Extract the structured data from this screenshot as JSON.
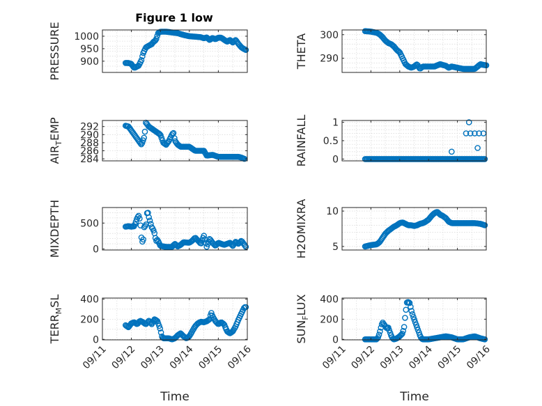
{
  "figure": {
    "title": "Figure 1 low",
    "marker_color": "#0072BD",
    "xlabel": "Time",
    "xtick_labels": [
      "09/11",
      "09/12",
      "09/13",
      "09/14",
      "09/15",
      "09/16"
    ]
  },
  "chart_data": [
    {
      "type": "scatter",
      "ylabel": "PRESSURE",
      "ylabel_sub": "",
      "ylabel_tail": "",
      "xlim": [
        0,
        5
      ],
      "ylim": [
        855,
        1025
      ],
      "yticks": [
        900,
        950,
        1000
      ],
      "ytick_labels": [
        "900",
        "950",
        "1000"
      ],
      "minor_yticks": [
        880,
        920,
        940,
        960,
        980,
        1020
      ],
      "grid": true,
      "show_xticklabels": false,
      "keypoints": [
        [
          0.8,
          893
        ],
        [
          0.9,
          893
        ],
        [
          1.0,
          889
        ],
        [
          1.05,
          880
        ],
        [
          1.1,
          873
        ],
        [
          1.15,
          876
        ],
        [
          1.25,
          882
        ],
        [
          1.3,
          893
        ],
        [
          1.35,
          905
        ],
        [
          1.4,
          930
        ],
        [
          1.5,
          955
        ],
        [
          1.6,
          962
        ],
        [
          1.7,
          968
        ],
        [
          1.75,
          976
        ],
        [
          1.85,
          985
        ],
        [
          1.92,
          1012
        ],
        [
          2.0,
          1018
        ],
        [
          2.2,
          1018
        ],
        [
          2.4,
          1015
        ],
        [
          2.6,
          1012
        ],
        [
          2.8,
          1005
        ],
        [
          3.0,
          1000
        ],
        [
          3.2,
          998
        ],
        [
          3.4,
          996
        ],
        [
          3.5,
          992
        ],
        [
          3.6,
          995
        ],
        [
          3.7,
          985
        ],
        [
          3.8,
          993
        ],
        [
          3.9,
          988
        ],
        [
          4.0,
          994
        ],
        [
          4.1,
          994
        ],
        [
          4.2,
          986
        ],
        [
          4.3,
          978
        ],
        [
          4.4,
          985
        ],
        [
          4.5,
          975
        ],
        [
          4.6,
          985
        ],
        [
          4.7,
          968
        ],
        [
          4.8,
          955
        ],
        [
          4.9,
          948
        ],
        [
          4.95,
          945
        ]
      ],
      "count": 130
    },
    {
      "type": "scatter",
      "ylabel": "THETA",
      "ylabel_sub": "",
      "ylabel_tail": "",
      "xlim": [
        0,
        5
      ],
      "ylim": [
        284,
        302
      ],
      "yticks": [
        290,
        300
      ],
      "ytick_labels": [
        "290",
        "300"
      ],
      "minor_yticks": [
        286,
        288,
        292,
        294,
        296,
        298
      ],
      "grid": true,
      "show_xticklabels": false,
      "keypoints": [
        [
          0.8,
          301.5
        ],
        [
          1.0,
          301.3
        ],
        [
          1.2,
          300.8
        ],
        [
          1.3,
          300.2
        ],
        [
          1.4,
          299.0
        ],
        [
          1.5,
          297.5
        ],
        [
          1.6,
          296.5
        ],
        [
          1.7,
          296.0
        ],
        [
          1.8,
          295.0
        ],
        [
          1.9,
          293.5
        ],
        [
          2.0,
          292.5
        ],
        [
          2.1,
          290.0
        ],
        [
          2.2,
          287.5
        ],
        [
          2.3,
          286.5
        ],
        [
          2.4,
          286.0
        ],
        [
          2.5,
          286.5
        ],
        [
          2.6,
          287.5
        ],
        [
          2.7,
          285.5
        ],
        [
          2.8,
          286.5
        ],
        [
          3.0,
          286.5
        ],
        [
          3.2,
          286.5
        ],
        [
          3.4,
          287.5
        ],
        [
          3.6,
          286.8
        ],
        [
          3.7,
          286.0
        ],
        [
          3.8,
          286.5
        ],
        [
          4.0,
          286.0
        ],
        [
          4.2,
          285.5
        ],
        [
          4.4,
          285.5
        ],
        [
          4.6,
          285.5
        ],
        [
          4.7,
          286.5
        ],
        [
          4.8,
          287.5
        ],
        [
          4.9,
          287.2
        ],
        [
          5.0,
          287.0
        ]
      ],
      "count": 130
    },
    {
      "type": "scatter",
      "ylabel": "AIR",
      "ylabel_sub": "T",
      "ylabel_tail": "EMP",
      "xlim": [
        0,
        5
      ],
      "ylim": [
        283.5,
        293.5
      ],
      "yticks": [
        284,
        286,
        288,
        290,
        292
      ],
      "ytick_labels": [
        "284",
        "286",
        "288",
        "290",
        "292"
      ],
      "minor_yticks": [],
      "grid": true,
      "show_xticklabels": false,
      "keypoints": [
        [
          0.8,
          292.2
        ],
        [
          0.9,
          292.0
        ],
        [
          1.0,
          291.0
        ],
        [
          1.1,
          290.0
        ],
        [
          1.2,
          289.0
        ],
        [
          1.3,
          288.0
        ],
        [
          1.35,
          287.5
        ],
        [
          1.45,
          289.5
        ],
        [
          1.5,
          293.0
        ],
        [
          1.6,
          292.0
        ],
        [
          1.7,
          291.5
        ],
        [
          1.8,
          291.0
        ],
        [
          1.9,
          290.5
        ],
        [
          2.0,
          290.0
        ],
        [
          2.1,
          288.0
        ],
        [
          2.2,
          287.5
        ],
        [
          2.3,
          288.5
        ],
        [
          2.4,
          290.0
        ],
        [
          2.45,
          290.5
        ],
        [
          2.5,
          288.5
        ],
        [
          2.6,
          287.5
        ],
        [
          2.7,
          287.0
        ],
        [
          2.8,
          287.0
        ],
        [
          3.0,
          287.0
        ],
        [
          3.2,
          286.0
        ],
        [
          3.4,
          286.0
        ],
        [
          3.5,
          286.0
        ],
        [
          3.6,
          284.8
        ],
        [
          3.8,
          285.0
        ],
        [
          4.0,
          284.5
        ],
        [
          4.2,
          284.5
        ],
        [
          4.4,
          284.5
        ],
        [
          4.6,
          284.5
        ],
        [
          4.7,
          284.5
        ],
        [
          4.8,
          284.3
        ],
        [
          4.9,
          284.0
        ]
      ],
      "count": 130
    },
    {
      "type": "scatter",
      "ylabel": "RAINFALL",
      "ylabel_sub": "",
      "ylabel_tail": "",
      "xlim": [
        0,
        5
      ],
      "ylim": [
        -0.05,
        1.05
      ],
      "yticks": [
        0,
        0.5,
        1
      ],
      "ytick_labels": [
        "0",
        "0.5",
        "1"
      ],
      "minor_yticks": [
        0.1,
        0.2,
        0.3,
        0.4,
        0.6,
        0.7,
        0.8,
        0.9
      ],
      "grid": true,
      "show_xticklabels": false,
      "keypoints": [
        [
          0.8,
          0
        ],
        [
          4.95,
          0
        ]
      ],
      "count": 120,
      "extra_points": [
        [
          3.8,
          0.2
        ],
        [
          4.3,
          0.7
        ],
        [
          4.4,
          1.0
        ],
        [
          4.45,
          0.7
        ],
        [
          4.6,
          0.7
        ],
        [
          4.7,
          0.3
        ],
        [
          4.75,
          0.7
        ],
        [
          4.9,
          0.7
        ]
      ]
    },
    {
      "type": "scatter",
      "ylabel": "MIXDEPTH",
      "ylabel_sub": "",
      "ylabel_tail": "",
      "xlim": [
        0,
        5
      ],
      "ylim": [
        -20,
        800
      ],
      "yticks": [
        0,
        500
      ],
      "ytick_labels": [
        "0",
        "500"
      ],
      "minor_yticks": [
        100,
        200,
        300,
        400,
        600,
        700
      ],
      "grid": true,
      "show_xticklabels": false,
      "keypoints": [
        [
          0.8,
          430
        ],
        [
          0.9,
          440
        ],
        [
          1.0,
          430
        ],
        [
          1.1,
          440
        ],
        [
          1.2,
          600
        ],
        [
          1.25,
          640
        ],
        [
          1.3,
          560
        ],
        [
          1.35,
          200
        ],
        [
          1.4,
          100
        ],
        [
          1.45,
          470
        ],
        [
          1.5,
          420
        ],
        [
          1.55,
          760
        ],
        [
          1.6,
          620
        ],
        [
          1.7,
          420
        ],
        [
          1.75,
          380
        ],
        [
          1.8,
          300
        ],
        [
          1.85,
          150
        ],
        [
          1.9,
          180
        ],
        [
          2.0,
          60
        ],
        [
          2.2,
          40
        ],
        [
          2.4,
          40
        ],
        [
          2.5,
          100
        ],
        [
          2.6,
          50
        ],
        [
          2.7,
          80
        ],
        [
          2.8,
          130
        ],
        [
          3.0,
          120
        ],
        [
          3.1,
          160
        ],
        [
          3.2,
          220
        ],
        [
          3.3,
          160
        ],
        [
          3.4,
          100
        ],
        [
          3.5,
          260
        ],
        [
          3.6,
          40
        ],
        [
          3.7,
          200
        ],
        [
          3.8,
          120
        ],
        [
          3.9,
          60
        ],
        [
          4.0,
          120
        ],
        [
          4.2,
          80
        ],
        [
          4.4,
          120
        ],
        [
          4.5,
          60
        ],
        [
          4.6,
          140
        ],
        [
          4.7,
          100
        ],
        [
          4.8,
          160
        ],
        [
          4.9,
          80
        ],
        [
          4.95,
          40
        ]
      ],
      "count": 130
    },
    {
      "type": "scatter",
      "ylabel": "H2OMIXRA",
      "ylabel_sub": "",
      "ylabel_tail": "",
      "xlim": [
        0,
        5
      ],
      "ylim": [
        4.5,
        10.5
      ],
      "yticks": [
        5,
        10
      ],
      "ytick_labels": [
        "5",
        "10"
      ],
      "minor_yticks": [
        6,
        7,
        8,
        9
      ],
      "grid": true,
      "show_xticklabels": false,
      "keypoints": [
        [
          0.8,
          5.0
        ],
        [
          1.0,
          5.2
        ],
        [
          1.2,
          5.3
        ],
        [
          1.3,
          5.6
        ],
        [
          1.4,
          6.2
        ],
        [
          1.5,
          6.8
        ],
        [
          1.6,
          7.2
        ],
        [
          1.7,
          7.5
        ],
        [
          1.8,
          7.8
        ],
        [
          1.9,
          8.0
        ],
        [
          2.0,
          8.3
        ],
        [
          2.1,
          8.4
        ],
        [
          2.2,
          8.2
        ],
        [
          2.3,
          8.0
        ],
        [
          2.4,
          8.0
        ],
        [
          2.5,
          7.9
        ],
        [
          2.6,
          8.0
        ],
        [
          2.7,
          8.2
        ],
        [
          2.8,
          8.3
        ],
        [
          2.9,
          8.5
        ],
        [
          3.0,
          8.8
        ],
        [
          3.1,
          9.3
        ],
        [
          3.2,
          9.7
        ],
        [
          3.3,
          9.9
        ],
        [
          3.4,
          9.5
        ],
        [
          3.5,
          9.3
        ],
        [
          3.6,
          9.0
        ],
        [
          3.7,
          8.5
        ],
        [
          3.8,
          8.3
        ],
        [
          4.0,
          8.3
        ],
        [
          4.2,
          8.3
        ],
        [
          4.4,
          8.3
        ],
        [
          4.6,
          8.3
        ],
        [
          4.8,
          8.2
        ],
        [
          4.95,
          8.0
        ]
      ],
      "count": 130
    },
    {
      "type": "scatter",
      "ylabel": "TERR",
      "ylabel_sub": "M",
      "ylabel_tail": "SL",
      "xlim": [
        0,
        5
      ],
      "ylim": [
        -5,
        410
      ],
      "yticks": [
        0,
        200,
        400
      ],
      "ytick_labels": [
        "0",
        "200",
        "400"
      ],
      "minor_yticks": [
        100,
        300
      ],
      "grid": true,
      "show_xticklabels": true,
      "keypoints": [
        [
          0.8,
          140
        ],
        [
          0.9,
          120
        ],
        [
          1.0,
          160
        ],
        [
          1.1,
          170
        ],
        [
          1.2,
          150
        ],
        [
          1.3,
          185
        ],
        [
          1.4,
          170
        ],
        [
          1.5,
          150
        ],
        [
          1.6,
          185
        ],
        [
          1.7,
          150
        ],
        [
          1.8,
          200
        ],
        [
          1.9,
          180
        ],
        [
          2.0,
          100
        ],
        [
          2.05,
          30
        ],
        [
          2.1,
          10
        ],
        [
          2.2,
          10
        ],
        [
          2.3,
          10
        ],
        [
          2.4,
          0
        ],
        [
          2.5,
          10
        ],
        [
          2.6,
          40
        ],
        [
          2.7,
          60
        ],
        [
          2.8,
          30
        ],
        [
          2.9,
          10
        ],
        [
          3.0,
          30
        ],
        [
          3.1,
          80
        ],
        [
          3.2,
          130
        ],
        [
          3.3,
          160
        ],
        [
          3.4,
          175
        ],
        [
          3.5,
          170
        ],
        [
          3.6,
          180
        ],
        [
          3.7,
          200
        ],
        [
          3.75,
          270
        ],
        [
          3.8,
          230
        ],
        [
          3.9,
          180
        ],
        [
          4.0,
          150
        ],
        [
          4.1,
          170
        ],
        [
          4.2,
          150
        ],
        [
          4.3,
          80
        ],
        [
          4.4,
          60
        ],
        [
          4.5,
          80
        ],
        [
          4.6,
          130
        ],
        [
          4.7,
          200
        ],
        [
          4.8,
          260
        ],
        [
          4.9,
          320
        ],
        [
          4.95,
          320
        ]
      ],
      "count": 130
    },
    {
      "type": "scatter",
      "ylabel": "SUN",
      "ylabel_sub": "F",
      "ylabel_tail": "LUX",
      "xlim": [
        0,
        5
      ],
      "ylim": [
        -5,
        410
      ],
      "yticks": [
        0,
        200,
        400
      ],
      "ytick_labels": [
        "0",
        "200",
        "400"
      ],
      "minor_yticks": [
        100,
        300
      ],
      "grid": true,
      "show_xticklabels": true,
      "keypoints": [
        [
          0.8,
          0
        ],
        [
          1.0,
          0
        ],
        [
          1.2,
          0
        ],
        [
          1.25,
          20
        ],
        [
          1.3,
          60
        ],
        [
          1.35,
          120
        ],
        [
          1.4,
          170
        ],
        [
          1.45,
          150
        ],
        [
          1.5,
          130
        ],
        [
          1.55,
          110
        ],
        [
          1.6,
          120
        ],
        [
          1.65,
          80
        ],
        [
          1.7,
          40
        ],
        [
          1.75,
          10
        ],
        [
          1.8,
          0
        ],
        [
          1.9,
          10
        ],
        [
          2.0,
          30
        ],
        [
          2.1,
          60
        ],
        [
          2.15,
          120
        ],
        [
          2.2,
          260
        ],
        [
          2.25,
          370
        ],
        [
          2.3,
          370
        ],
        [
          2.35,
          360
        ],
        [
          2.4,
          290
        ],
        [
          2.45,
          240
        ],
        [
          2.5,
          200
        ],
        [
          2.55,
          160
        ],
        [
          2.6,
          120
        ],
        [
          2.65,
          80
        ],
        [
          2.7,
          40
        ],
        [
          2.75,
          10
        ],
        [
          2.8,
          0
        ],
        [
          3.0,
          0
        ],
        [
          3.2,
          10
        ],
        [
          3.4,
          20
        ],
        [
          3.6,
          30
        ],
        [
          3.8,
          20
        ],
        [
          4.0,
          0
        ],
        [
          4.2,
          0
        ],
        [
          4.4,
          20
        ],
        [
          4.6,
          30
        ],
        [
          4.8,
          10
        ],
        [
          4.95,
          0
        ]
      ],
      "count": 130
    }
  ]
}
